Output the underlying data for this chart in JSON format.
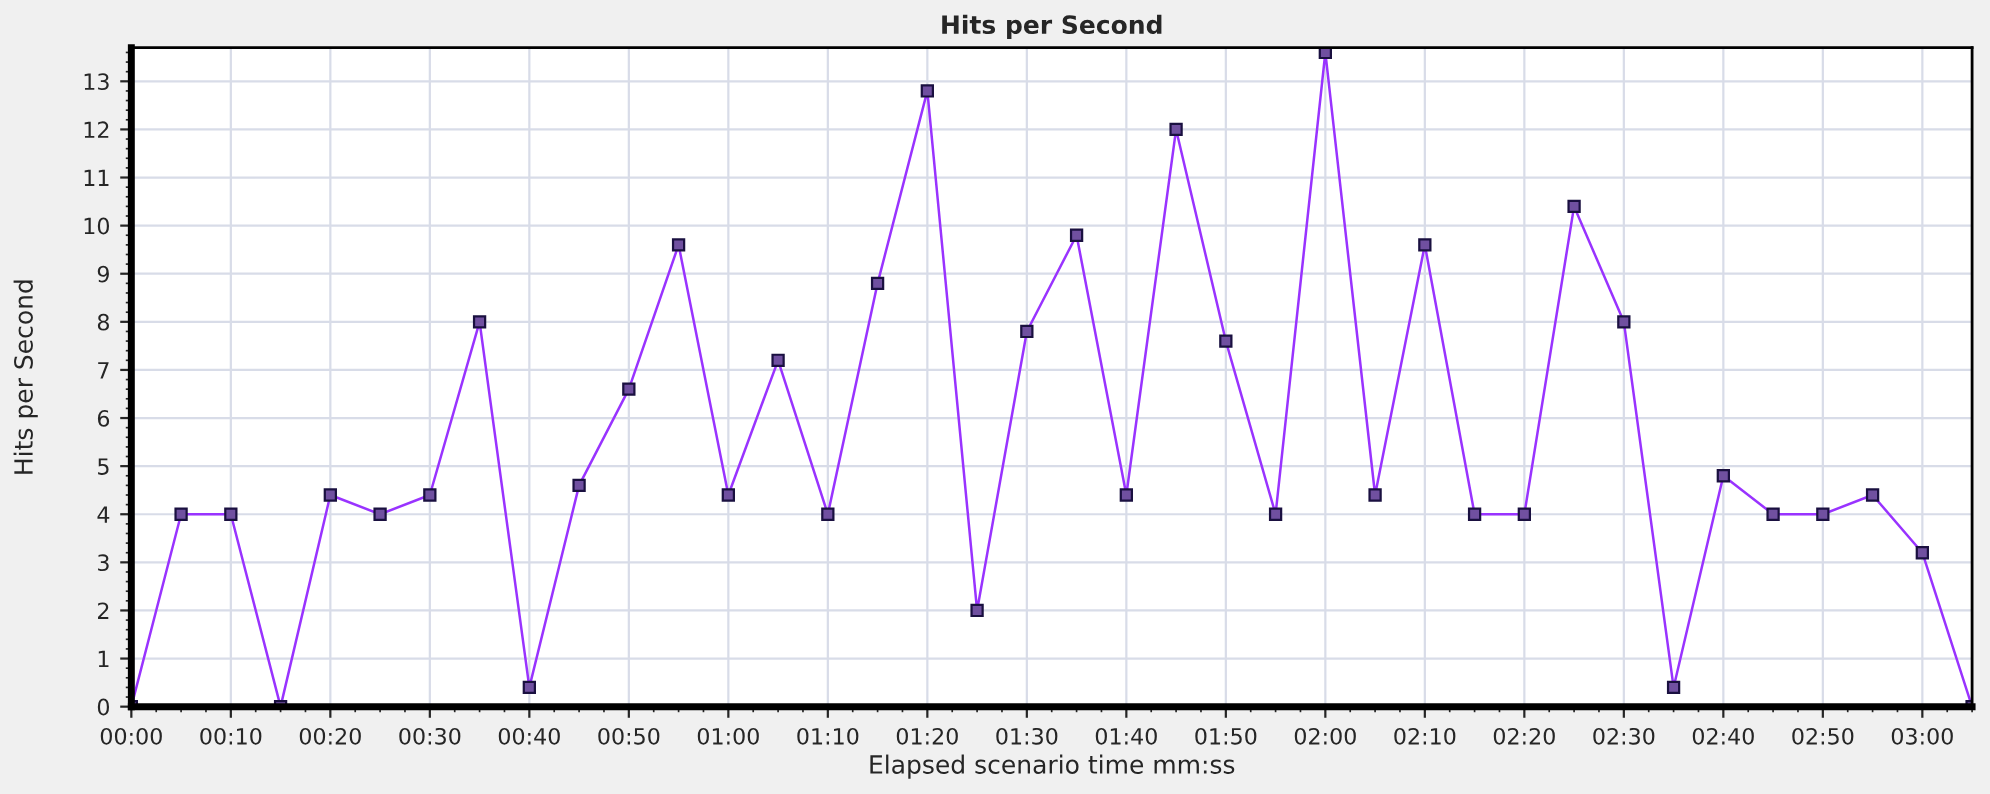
{
  "chart_data": {
    "type": "line",
    "title": "Hits per Second",
    "xlabel": "Elapsed scenario time mm:ss",
    "ylabel": "Hits per Second",
    "x": [
      0,
      5,
      10,
      15,
      20,
      25,
      30,
      35,
      40,
      45,
      50,
      55,
      60,
      65,
      70,
      75,
      80,
      85,
      90,
      95,
      100,
      105,
      110,
      115,
      120,
      125,
      130,
      135,
      140,
      145,
      150,
      155,
      160,
      165,
      170,
      175,
      180,
      185
    ],
    "series": [
      {
        "color": "#9933ff",
        "values": [
          0,
          4,
          4,
          0,
          4.4,
          4,
          4.4,
          8,
          0.4,
          4.6,
          6.6,
          9.6,
          4.4,
          7.2,
          4,
          8.8,
          12.8,
          2,
          7.8,
          9.8,
          4.4,
          12,
          7.6,
          4,
          13.6,
          4.4,
          9.6,
          4,
          4,
          10.4,
          8,
          0.4,
          4.8,
          4,
          4,
          4.4,
          3.2,
          0
        ]
      }
    ],
    "xlim": [
      0,
      185
    ],
    "ylim": [
      0,
      13.7
    ],
    "xticks": [
      {
        "value": 0,
        "label": "00:00"
      },
      {
        "value": 10,
        "label": "00:10"
      },
      {
        "value": 20,
        "label": "00:20"
      },
      {
        "value": 30,
        "label": "00:30"
      },
      {
        "value": 40,
        "label": "00:40"
      },
      {
        "value": 50,
        "label": "00:50"
      },
      {
        "value": 60,
        "label": "01:00"
      },
      {
        "value": 70,
        "label": "01:10"
      },
      {
        "value": 80,
        "label": "01:20"
      },
      {
        "value": 90,
        "label": "01:30"
      },
      {
        "value": 100,
        "label": "01:40"
      },
      {
        "value": 110,
        "label": "01:50"
      },
      {
        "value": 120,
        "label": "02:00"
      },
      {
        "value": 130,
        "label": "02:10"
      },
      {
        "value": 140,
        "label": "02:20"
      },
      {
        "value": 150,
        "label": "02:30"
      },
      {
        "value": 160,
        "label": "02:40"
      },
      {
        "value": 170,
        "label": "02:50"
      },
      {
        "value": 180,
        "label": "03:00"
      }
    ],
    "yticks": [
      0,
      1,
      2,
      3,
      4,
      5,
      6,
      7,
      8,
      9,
      10,
      11,
      12,
      13
    ],
    "grid": true,
    "marker": "square",
    "line_style": "solid",
    "legend": false
  }
}
